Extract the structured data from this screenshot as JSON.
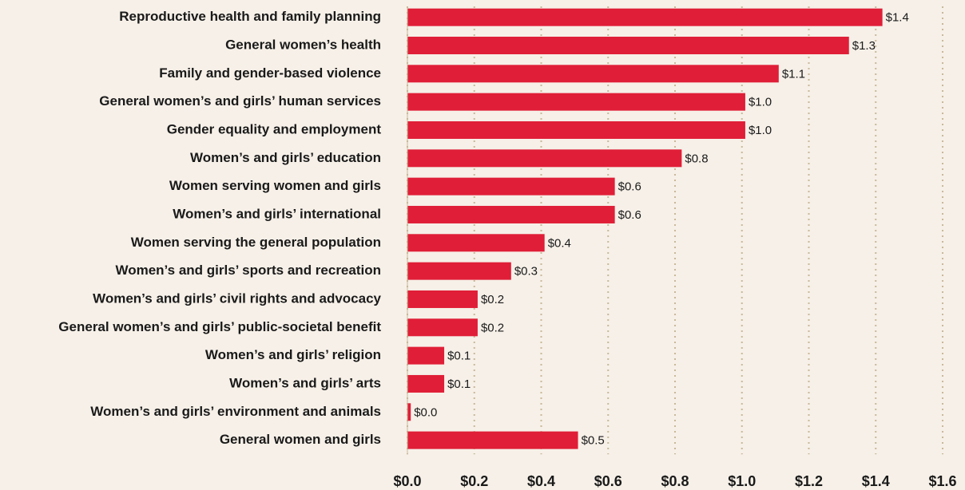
{
  "chart_data": {
    "type": "bar",
    "orientation": "horizontal",
    "categories": [
      "Reproductive health and family planning",
      "General women’s health",
      "Family and gender-based violence",
      "General women’s and girls’ human services",
      "Gender equality and employment",
      "Women’s and girls’ education",
      "Women serving women and girls",
      "Women’s and girls’ international",
      "Women serving the general population",
      "Women’s and girls’ sports and recreation",
      "Women’s and girls’ civil rights and advocacy",
      "General women’s and girls’ public-societal benefit",
      "Women’s and girls’ religion",
      "Women’s and girls’ arts",
      "Women’s and girls’ environment and animals",
      "General women and girls"
    ],
    "values": [
      1.42,
      1.32,
      1.11,
      1.01,
      1.01,
      0.82,
      0.62,
      0.62,
      0.41,
      0.31,
      0.21,
      0.21,
      0.11,
      0.11,
      0.01,
      0.51
    ],
    "value_labels": [
      "$1.4",
      "$1.3",
      "$1.1",
      "$1.0",
      "$1.0",
      "$0.8",
      "$0.6",
      "$0.6",
      "$0.4",
      "$0.3",
      "$0.2",
      "$0.2",
      "$0.1",
      "$0.1",
      "$0.0",
      "$0.5"
    ],
    "color": "#e01e37",
    "xlim": [
      0,
      1.6
    ],
    "xticks": [
      {
        "value": 0,
        "label": "$0.0"
      },
      {
        "value": 0.2,
        "label": "$0.2"
      },
      {
        "value": 0.4,
        "label": "$0.4"
      },
      {
        "value": 0.6,
        "label": "$0.6"
      },
      {
        "value": 0.8,
        "label": "$0.8"
      },
      {
        "value": 1.0,
        "label": "$1.0"
      },
      {
        "value": 1.2,
        "label": "$1.2"
      },
      {
        "value": 1.4,
        "label": "$1.4"
      },
      {
        "value": 1.6,
        "label": "$1.6"
      }
    ],
    "grid": true
  }
}
